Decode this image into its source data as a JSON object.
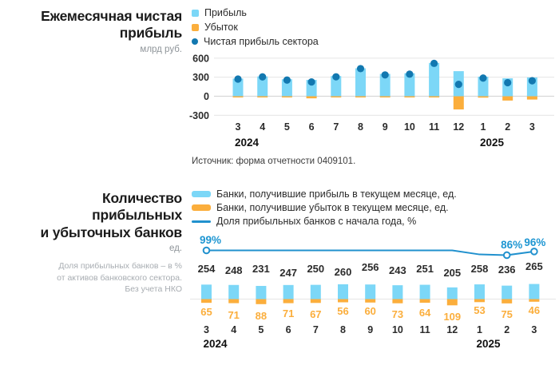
{
  "colors": {
    "profit": "#7CD7F7",
    "loss": "#FBAE3C",
    "net_dot": "#1278B0",
    "line": "#2191CE",
    "pct_label": "#1E96D2",
    "text_dark": "#2B2B2B",
    "grid": "#E9E9E9",
    "axis": "#D8D8D8"
  },
  "top": {
    "title_line1": "Ежемесячная чистая",
    "title_line2": "прибыль",
    "unit": "млрд руб.",
    "source": "Источник: форма отчетности 0409101."
  },
  "bottom": {
    "title_line1": "Количество",
    "title_line2": "прибыльных",
    "title_line3": "и убыточных банков",
    "unit": "ед.",
    "footnote_line1": "Доля прибыльных банков – в %",
    "footnote_line2": "от активов банковского сектора.",
    "footnote_line3": "Без учета НКО"
  },
  "chart_data": [
    {
      "id": "monthly-net-profit",
      "type": "bar",
      "title": "Ежемесячная чистая прибыль",
      "ylabel": "млрд руб.",
      "categories": [
        "3",
        "4",
        "5",
        "6",
        "7",
        "8",
        "9",
        "10",
        "11",
        "12",
        "1",
        "2",
        "3"
      ],
      "year_breaks": [
        {
          "index": 0,
          "label": "2024"
        },
        {
          "index": 10,
          "label": "2025"
        }
      ],
      "y_ticks": [
        600,
        300,
        0,
        -300
      ],
      "ylim": [
        -330,
        650
      ],
      "grid": true,
      "legend_position": "top",
      "series": [
        {
          "name": "Прибыль",
          "type": "bar",
          "color_key": "profit",
          "values": [
            278,
            312,
            268,
            258,
            318,
            440,
            352,
            362,
            525,
            395,
            308,
            282,
            296
          ]
        },
        {
          "name": "Убыток",
          "type": "bar",
          "color_key": "loss",
          "values": [
            -8,
            -7,
            -13,
            -33,
            -12,
            -5,
            -16,
            -14,
            -7,
            -208,
            -22,
            -68,
            -52
          ]
        },
        {
          "name": "Чистая прибыль сектора",
          "type": "point",
          "color_key": "net_dot",
          "values": [
            270,
            305,
            255,
            225,
            306,
            435,
            336,
            348,
            518,
            187,
            286,
            214,
            244
          ]
        }
      ]
    },
    {
      "id": "profitable-unprofitable-banks",
      "type": "bar",
      "title": "Количество прибыльных и убыточных банков",
      "ylabel": "ед.",
      "categories": [
        "3",
        "4",
        "5",
        "6",
        "7",
        "8",
        "9",
        "10",
        "11",
        "12",
        "1",
        "2",
        "3"
      ],
      "year_breaks": [
        {
          "index": 0,
          "label": "2024"
        },
        {
          "index": 10,
          "label": "2025"
        }
      ],
      "grid": false,
      "legend_position": "top",
      "series": [
        {
          "name": "Банки, получившие прибыль в текущем месяце, ед.",
          "type": "bar",
          "color_key": "profit",
          "values": [
            254,
            248,
            231,
            247,
            250,
            260,
            256,
            243,
            251,
            205,
            258,
            236,
            265
          ],
          "labels_visible": true
        },
        {
          "name": "Банки, получившие убыток в текущем месяце, ед.",
          "type": "bar",
          "color_key": "loss",
          "values": [
            65,
            71,
            88,
            71,
            67,
            56,
            60,
            73,
            64,
            109,
            53,
            75,
            46
          ],
          "labels_visible": true
        },
        {
          "name": "Доля прибыльных банков с начала года, %",
          "type": "line",
          "color_key": "line",
          "values": [
            99,
            99,
            99,
            99,
            99,
            99,
            99,
            99,
            99,
            99,
            88,
            86,
            96
          ],
          "labeled_points": [
            {
              "index": 0,
              "text": "99%"
            },
            {
              "index": 11,
              "text": "86%"
            },
            {
              "index": 12,
              "text": "96%"
            }
          ]
        }
      ]
    }
  ]
}
